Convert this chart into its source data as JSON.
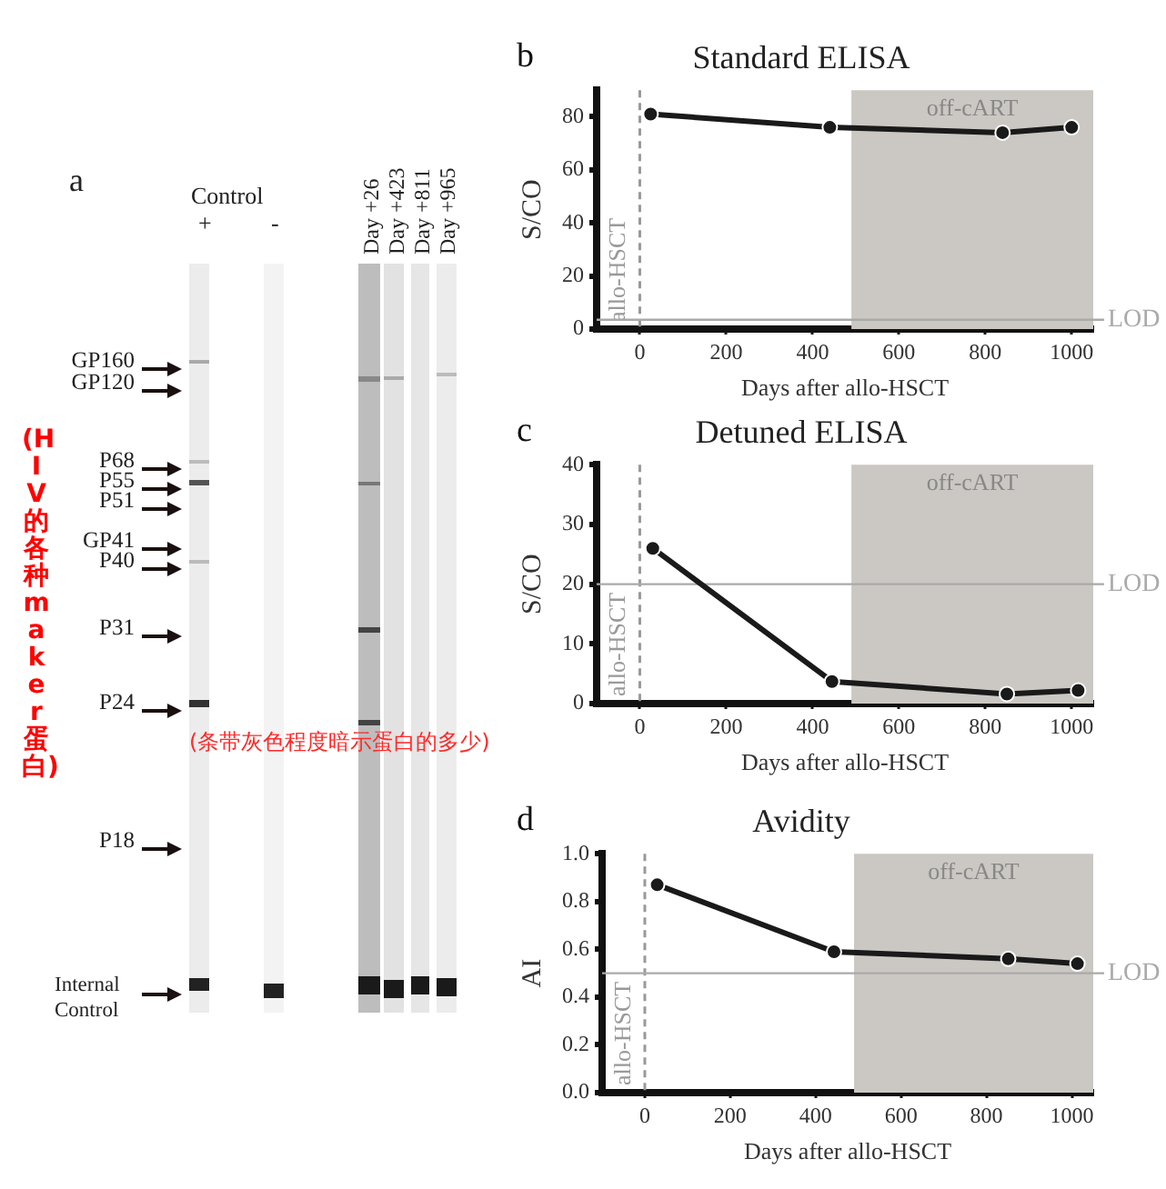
{
  "chart_data": [
    {
      "type": "other",
      "title": "a",
      "annotations": [
        "Control",
        "+",
        "-",
        "Day +26",
        "Day +423",
        "Day +811",
        "Day +965",
        "GP160",
        "GP120",
        "P68",
        "P55",
        "P51",
        "GP41",
        "P40",
        "P31",
        "P24",
        "P18",
        "Internal Control",
        "(HIV的各种maker蛋白)",
        "(条带灰色程度暗示蛋白的多少)"
      ]
    },
    {
      "type": "line",
      "title": "Standard ELISA",
      "xlabel": "Days after allo-HSCT",
      "ylabel": "S/CO",
      "annotations": [
        "b"
      ],
      "color": "#1a1a1a",
      "marker": "circle",
      "x": [
        25,
        440,
        840,
        1000
      ],
      "values": [
        81,
        76,
        74,
        76
      ],
      "xlim": [
        -100,
        1050
      ],
      "xticks": [
        0,
        200,
        400,
        600,
        800,
        1000
      ],
      "ylim": [
        0,
        90
      ],
      "yticks": [
        0,
        20,
        40,
        60,
        80
      ],
      "ref_lines": [
        {
          "axis": "x",
          "value": 0,
          "label": "allo-HSCT",
          "color": "#999999",
          "line_style": "dashed"
        },
        {
          "axis": "y",
          "value": 3.5,
          "label": "LOD",
          "color": "#aaaaaa"
        }
      ],
      "bands": [
        {
          "axis": "x",
          "from": 490,
          "to": 1050,
          "label": "off-cART",
          "color": "#cbc7c2"
        }
      ]
    },
    {
      "type": "line",
      "title": "Detuned ELISA",
      "xlabel": "Days after allo-HSCT",
      "ylabel": "S/CO",
      "annotations": [
        "c"
      ],
      "color": "#1a1a1a",
      "marker": "circle",
      "x": [
        30,
        445,
        850,
        1015
      ],
      "values": [
        26,
        3.7,
        1.6,
        2.2
      ],
      "xlim": [
        -100,
        1050
      ],
      "xticks": [
        0,
        200,
        400,
        600,
        800,
        1000
      ],
      "ylim": [
        0,
        40
      ],
      "yticks": [
        0,
        10,
        20,
        30,
        40
      ],
      "ref_lines": [
        {
          "axis": "x",
          "value": 0,
          "label": "allo-HSCT",
          "color": "#999999",
          "line_style": "dashed"
        },
        {
          "axis": "y",
          "value": 20,
          "label": "LOD",
          "color": "#aaaaaa"
        }
      ],
      "bands": [
        {
          "axis": "x",
          "from": 490,
          "to": 1050,
          "label": "off-cART",
          "color": "#cbc7c2"
        }
      ]
    },
    {
      "type": "line",
      "title": "Avidity",
      "xlabel": "Days after allo-HSCT",
      "ylabel": "AI",
      "annotations": [
        "d"
      ],
      "color": "#1a1a1a",
      "marker": "circle",
      "x": [
        29,
        443,
        851,
        1013
      ],
      "values": [
        0.87,
        0.59,
        0.56,
        0.54
      ],
      "xlim": [
        -100,
        1050
      ],
      "xticks": [
        0,
        200,
        400,
        600,
        800,
        1000
      ],
      "ylim": [
        0,
        1
      ],
      "yticks": [
        {
          "value": 0,
          "label": "0.0"
        },
        {
          "value": 0.2,
          "label": "0.2"
        },
        {
          "value": 0.4,
          "label": "0.4"
        },
        {
          "value": 0.6,
          "label": "0.6"
        },
        {
          "value": 0.8,
          "label": "0.8"
        },
        {
          "value": 1,
          "label": "1.0"
        }
      ],
      "ref_lines": [
        {
          "axis": "x",
          "value": 0,
          "label": "allo-HSCT",
          "color": "#999999",
          "line_style": "dashed"
        },
        {
          "axis": "y",
          "value": 0.5,
          "label": "LOD",
          "color": "#aaaaaa"
        }
      ],
      "bands": [
        {
          "axis": "x",
          "from": 490,
          "to": 1050,
          "label": "off-cART",
          "color": "#cbc7c2"
        }
      ]
    }
  ]
}
